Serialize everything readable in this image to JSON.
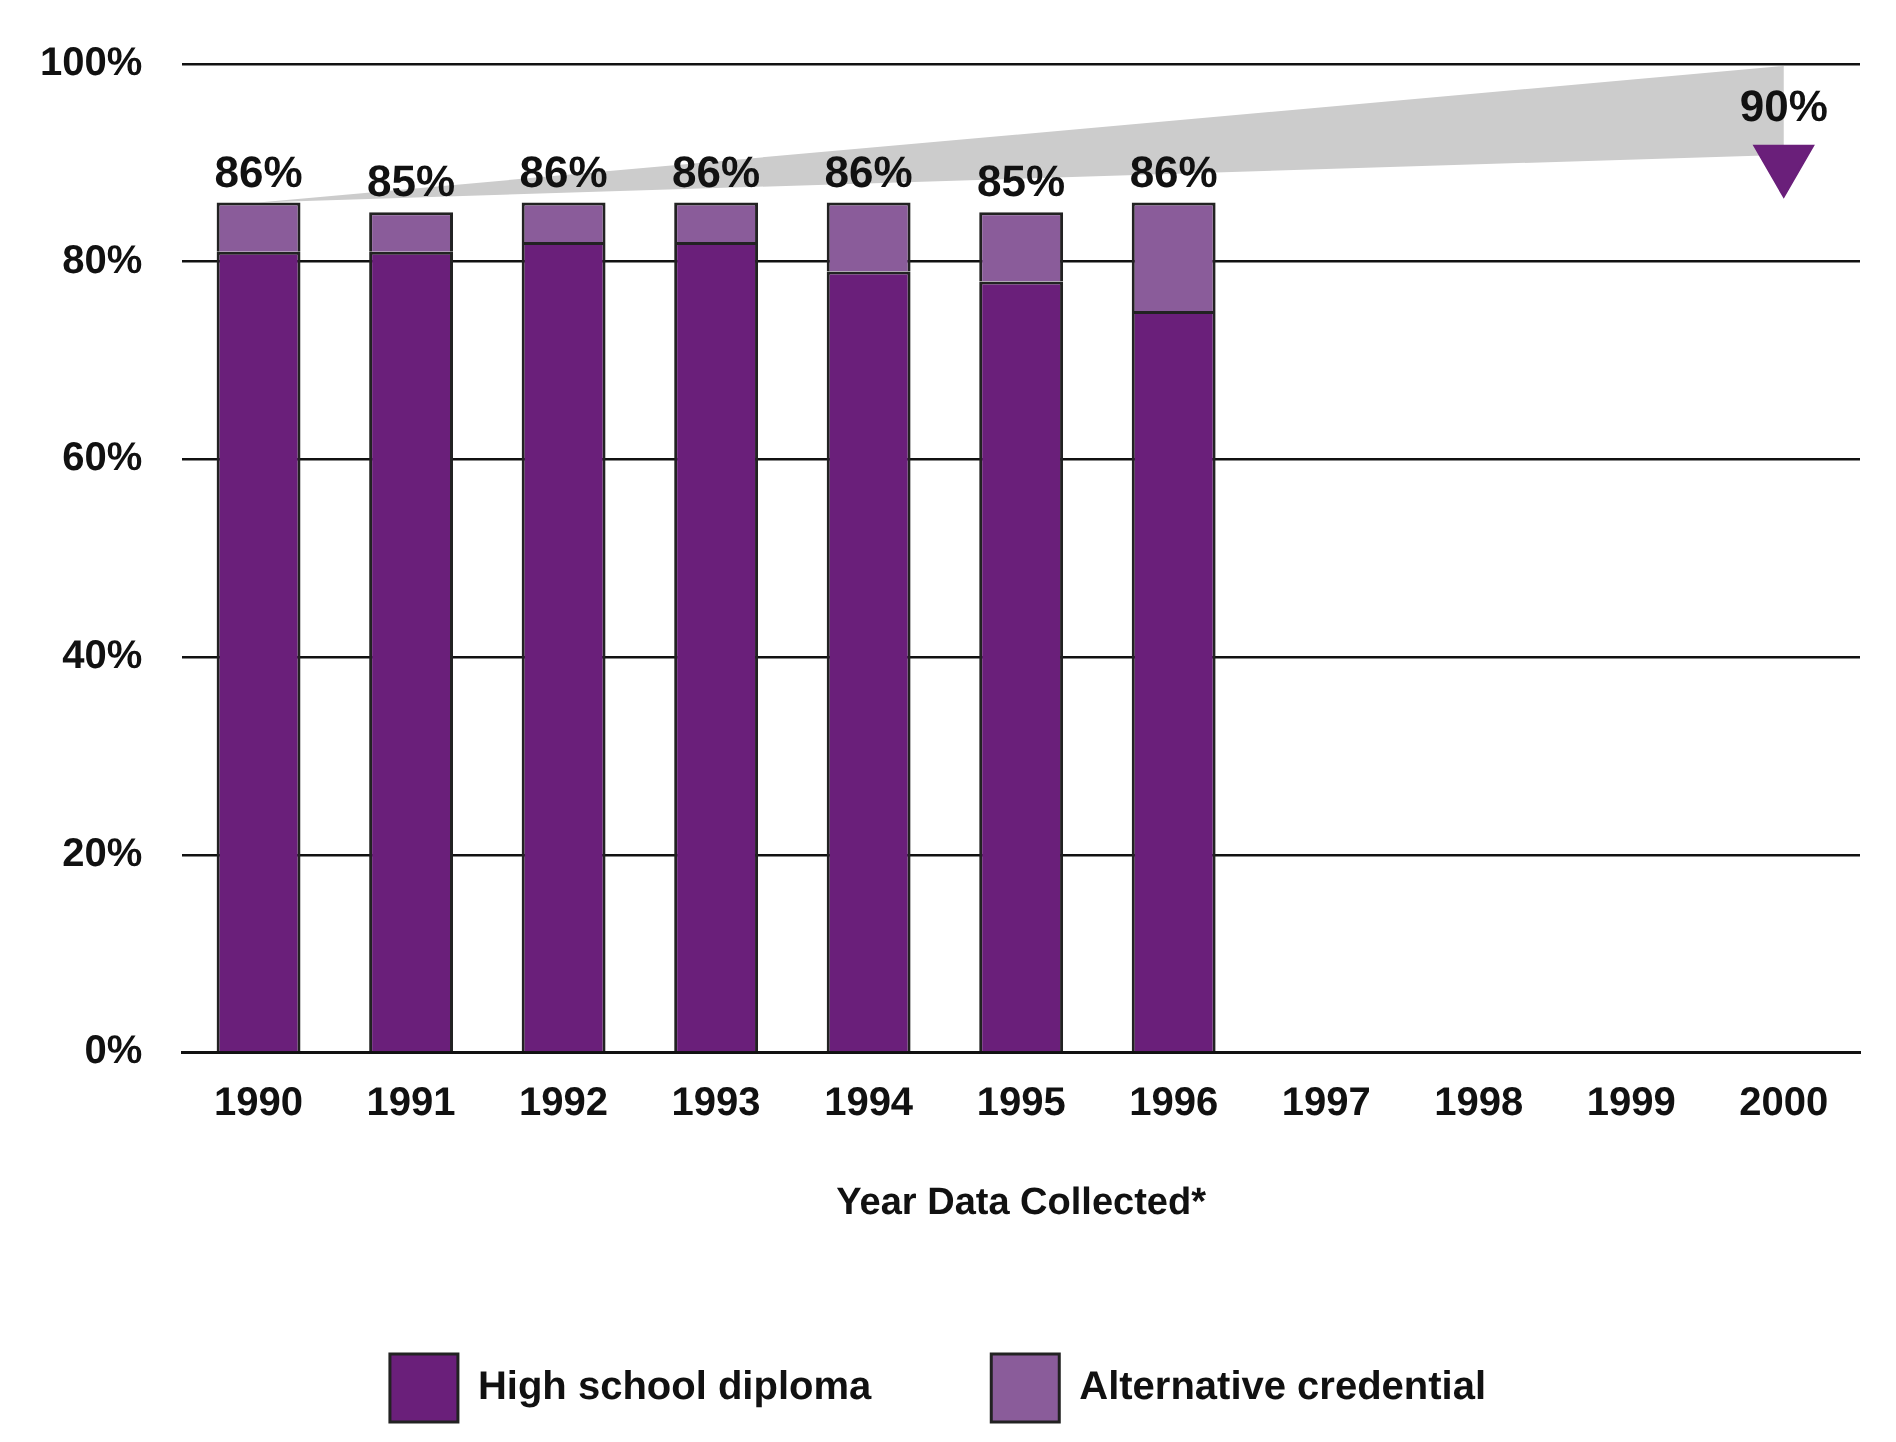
{
  "chart_data": {
    "type": "bar",
    "stacked": true,
    "xlabel": "Year Data Collected*",
    "categories": [
      "1990",
      "1991",
      "1992",
      "1993",
      "1994",
      "1995",
      "1996",
      "1997",
      "1998",
      "1999",
      "2000"
    ],
    "series": [
      {
        "name": "High school diploma",
        "color": "#6a1f7a",
        "values": [
          81,
          81,
          82,
          82,
          79,
          78,
          75,
          null,
          null,
          null,
          null
        ]
      },
      {
        "name": "Alternative credential",
        "color": "#8a5c9a",
        "values": [
          5,
          4,
          4,
          4,
          7,
          7,
          11,
          null,
          null,
          null,
          null
        ]
      },
      {
        "type": "scatter",
        "color": "#6a1f7a",
        "values": [
          null,
          null,
          null,
          null,
          null,
          null,
          null,
          null,
          null,
          null,
          90
        ],
        "marker": "triangle",
        "value_labels": [
          null,
          null,
          null,
          null,
          null,
          null,
          null,
          null,
          null,
          null,
          "90%"
        ]
      }
    ],
    "totals": [
      "86%",
      "85%",
      "86%",
      "86%",
      "86%",
      "85%",
      "86%",
      null,
      null,
      null,
      null
    ],
    "ylim": [
      0,
      100
    ],
    "yticks": [
      {
        "value": 0,
        "label": "0%"
      },
      {
        "value": 20,
        "label": "20%"
      },
      {
        "value": 40,
        "label": "40%"
      },
      {
        "value": 60,
        "label": "60%"
      },
      {
        "value": 80,
        "label": "80%"
      },
      {
        "value": 100,
        "label": "100%"
      }
    ],
    "grid": "y",
    "legend": "bottom"
  }
}
